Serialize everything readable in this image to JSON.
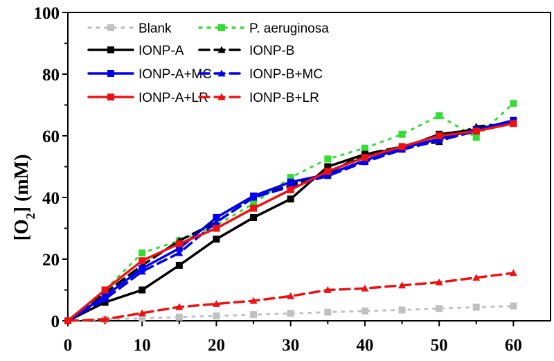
{
  "chart_data": {
    "type": "line",
    "title": "",
    "xlabel": "",
    "ylabel": {
      "prefix": "[O",
      "sub": "2",
      "suffix": "] (mM)"
    },
    "xlim": [
      0,
      65
    ],
    "ylim": [
      0,
      100
    ],
    "x_ticks": [
      0,
      10,
      20,
      30,
      40,
      50,
      60
    ],
    "y_ticks": [
      0,
      20,
      40,
      60,
      80,
      100
    ],
    "grid": false,
    "legend_position": "top-left",
    "x": [
      0,
      5,
      10,
      15,
      20,
      25,
      30,
      35,
      40,
      45,
      50,
      55,
      60
    ],
    "series": [
      {
        "name": "Blank",
        "color": "#c0c0c0",
        "marker": "square",
        "dash": "dot",
        "values": [
          0,
          0.5,
          0.8,
          1.2,
          1.6,
          2.0,
          2.4,
          2.8,
          3.2,
          3.5,
          4.0,
          4.4,
          4.8
        ]
      },
      {
        "name": "P. aeruginosa",
        "color": "#33dd33",
        "marker": "square",
        "dash": "dot",
        "values": [
          0,
          10,
          22,
          26,
          31,
          38,
          46.5,
          52.5,
          56,
          60.5,
          66.5,
          59.5,
          70.5
        ]
      },
      {
        "name": "IONP-A",
        "color": "#000000",
        "marker": "square",
        "dash": "solid",
        "values": [
          0,
          6,
          10,
          18,
          26.5,
          33.5,
          39.5,
          50,
          54,
          56,
          60.5,
          62,
          64.5
        ]
      },
      {
        "name": "IONP-B",
        "color": "#000000",
        "marker": "triangle",
        "dash": "dash",
        "values": [
          0,
          9,
          18,
          26,
          32,
          40,
          44,
          48,
          54,
          56.5,
          58,
          63,
          64
        ]
      },
      {
        "name": "IONP-A+MC",
        "color": "#0000ee",
        "marker": "square",
        "dash": "solid",
        "values": [
          0,
          8,
          17,
          23.5,
          33.5,
          40.5,
          45,
          47.5,
          52,
          56,
          59,
          62,
          65
        ]
      },
      {
        "name": "IONP-B+MC",
        "color": "#0000ee",
        "marker": "triangle",
        "dash": "dash",
        "values": [
          0,
          7,
          16,
          22,
          32,
          40,
          43.5,
          47,
          51.5,
          55.5,
          58.5,
          61.5,
          64.5
        ]
      },
      {
        "name": "IONP-A+LR",
        "color": "#ee1111",
        "marker": "square",
        "dash": "solid",
        "values": [
          0,
          10,
          19.5,
          25,
          30,
          36.5,
          42.5,
          48.5,
          53,
          56.5,
          60,
          61.5,
          64
        ]
      },
      {
        "name": "IONP-B+LR",
        "color": "#ee1111",
        "marker": "triangle",
        "dash": "dash",
        "values": [
          0,
          0.5,
          2.5,
          4.5,
          5.5,
          6.5,
          8,
          10,
          10.5,
          11.5,
          12.5,
          14,
          15.5
        ]
      }
    ]
  }
}
